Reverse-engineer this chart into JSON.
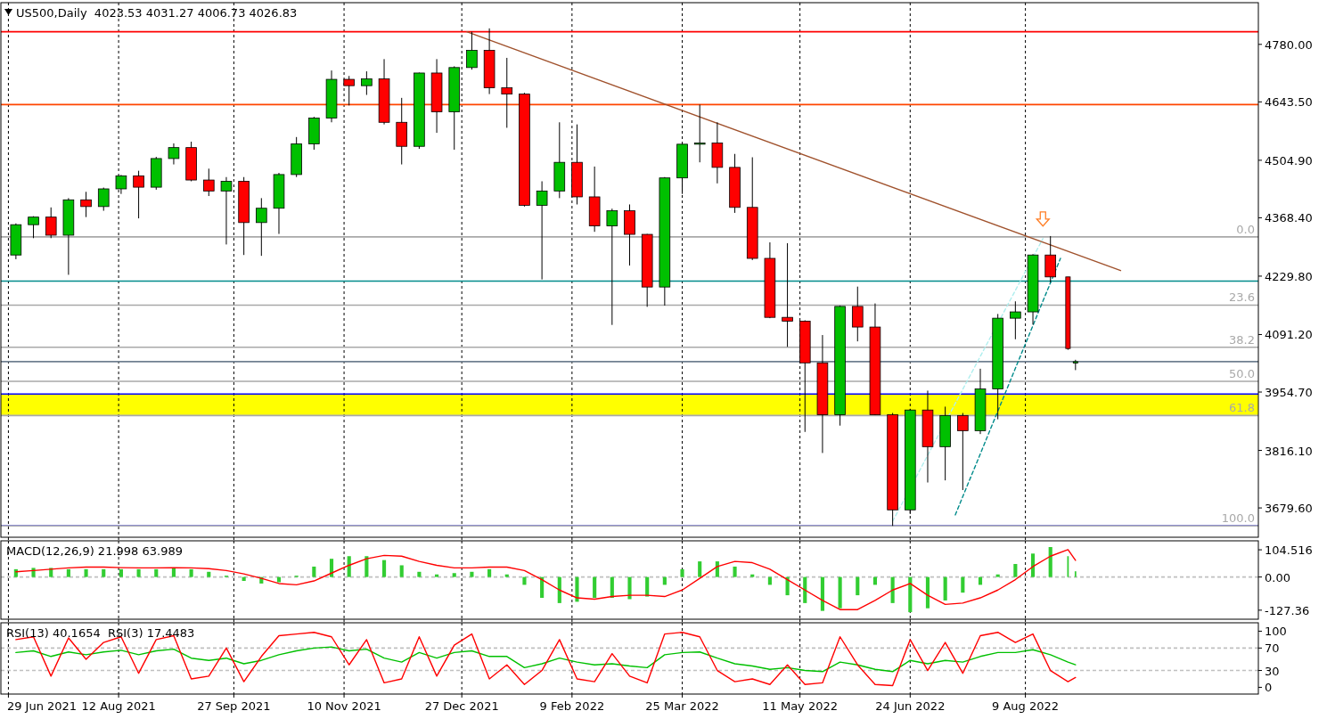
{
  "chart_data": [
    {
      "type": "candlestick",
      "title": "US500,Daily  4023.53 4031.27 4006.73 4026.83",
      "tick_labels": "y",
      "grid": "x",
      "x": [
        "2021-07-02",
        "2021-07-09",
        "2021-07-16",
        "2021-07-23",
        "2021-07-30",
        "2021-08-06",
        "2021-08-13",
        "2021-08-20",
        "2021-08-27",
        "2021-09-03",
        "2021-09-10",
        "2021-09-17",
        "2021-09-24",
        "2021-10-01",
        "2021-10-08",
        "2021-10-15",
        "2021-10-22",
        "2021-10-29",
        "2021-11-05",
        "2021-11-12",
        "2021-11-19",
        "2021-11-26",
        "2021-12-03",
        "2021-12-10",
        "2021-12-17",
        "2021-12-24",
        "2021-12-31",
        "2022-01-07",
        "2022-01-14",
        "2022-01-21",
        "2022-01-28",
        "2022-02-04",
        "2022-02-11",
        "2022-02-18",
        "2022-02-25",
        "2022-03-04",
        "2022-03-11",
        "2022-03-18",
        "2022-03-25",
        "2022-04-01",
        "2022-04-08",
        "2022-04-15",
        "2022-04-22",
        "2022-04-29",
        "2022-05-06",
        "2022-05-13",
        "2022-05-20",
        "2022-05-27",
        "2022-06-03",
        "2022-06-10",
        "2022-06-17",
        "2022-06-24",
        "2022-07-01",
        "2022-07-08",
        "2022-07-15",
        "2022-07-22",
        "2022-07-29",
        "2022-08-05",
        "2022-08-12",
        "2022-08-19",
        "2022-08-26",
        "2022-08-29"
      ],
      "ohlc": [
        [
          4280,
          4355,
          4270,
          4352
        ],
        [
          4352,
          4372,
          4320,
          4370
        ],
        [
          4370,
          4393,
          4320,
          4327
        ],
        [
          4327,
          4415,
          4233,
          4411
        ],
        [
          4411,
          4430,
          4370,
          4395
        ],
        [
          4395,
          4440,
          4385,
          4437
        ],
        [
          4437,
          4470,
          4425,
          4468
        ],
        [
          4468,
          4480,
          4367,
          4441
        ],
        [
          4441,
          4513,
          4435,
          4509
        ],
        [
          4509,
          4545,
          4495,
          4535
        ],
        [
          4535,
          4549,
          4455,
          4458
        ],
        [
          4458,
          4485,
          4420,
          4432
        ],
        [
          4432,
          4465,
          4305,
          4455
        ],
        [
          4455,
          4465,
          4280,
          4357
        ],
        [
          4357,
          4415,
          4278,
          4391
        ],
        [
          4391,
          4475,
          4330,
          4471
        ],
        [
          4471,
          4560,
          4465,
          4544
        ],
        [
          4544,
          4608,
          4530,
          4605
        ],
        [
          4605,
          4718,
          4595,
          4697
        ],
        [
          4697,
          4705,
          4635,
          4682
        ],
        [
          4682,
          4716,
          4660,
          4698
        ],
        [
          4698,
          4745,
          4590,
          4595
        ],
        [
          4595,
          4653,
          4495,
          4538
        ],
        [
          4538,
          4713,
          4532,
          4712
        ],
        [
          4712,
          4745,
          4570,
          4620
        ],
        [
          4620,
          4728,
          4530,
          4725
        ],
        [
          4725,
          4810,
          4720,
          4766
        ],
        [
          4766,
          4818,
          4662,
          4677
        ],
        [
          4677,
          4748,
          4582,
          4662
        ],
        [
          4662,
          4665,
          4395,
          4398
        ],
        [
          4398,
          4455,
          4222,
          4432
        ],
        [
          4432,
          4595,
          4415,
          4500
        ],
        [
          4500,
          4590,
          4400,
          4418
        ],
        [
          4418,
          4490,
          4335,
          4349
        ],
        [
          4349,
          4390,
          4114,
          4385
        ],
        [
          4385,
          4400,
          4255,
          4329
        ],
        [
          4329,
          4330,
          4157,
          4204
        ],
        [
          4204,
          4465,
          4160,
          4463
        ],
        [
          4463,
          4546,
          4425,
          4543
        ],
        [
          4543,
          4637,
          4500,
          4546
        ],
        [
          4546,
          4595,
          4450,
          4488
        ],
        [
          4488,
          4520,
          4380,
          4393
        ],
        [
          4393,
          4512,
          4268,
          4272
        ],
        [
          4272,
          4310,
          4130,
          4132
        ],
        [
          4132,
          4308,
          4062,
          4123
        ],
        [
          4123,
          4125,
          3860,
          4024
        ],
        [
          4024,
          4090,
          3810,
          3901
        ],
        [
          3901,
          4160,
          3875,
          4158
        ],
        [
          4158,
          4205,
          4075,
          4109
        ],
        [
          4109,
          4165,
          3900,
          3901
        ],
        [
          3901,
          3905,
          3637,
          3675
        ],
        [
          3675,
          3915,
          3665,
          3912
        ],
        [
          3912,
          3958,
          3740,
          3825
        ],
        [
          3825,
          3920,
          3745,
          3899
        ],
        [
          3899,
          3905,
          3722,
          3863
        ],
        [
          3863,
          4010,
          3855,
          3962
        ],
        [
          3962,
          4140,
          3890,
          4130
        ],
        [
          4130,
          4170,
          4080,
          4145
        ],
        [
          4145,
          4282,
          4115,
          4280
        ],
        [
          4280,
          4325,
          4215,
          4228
        ],
        [
          4228,
          4228,
          4055,
          4058
        ],
        [
          4023.53,
          4031.27,
          4006.73,
          4026.83
        ]
      ],
      "series": [
        {
          "type": "line",
          "x": [
            "2021-12-29",
            "2022-09-16"
          ],
          "values": [
            4810,
            4243
          ],
          "color": "#a0522d",
          "line_style": "solid"
        },
        {
          "type": "line",
          "x": [
            "2022-06-17",
            "2022-08-16"
          ],
          "values": [
            3648,
            4319
          ],
          "color": "#afeeee",
          "line_style": "dashed"
        },
        {
          "type": "line",
          "x": [
            "2022-07-12",
            "2022-08-23"
          ],
          "values": [
            3663,
            4272
          ],
          "color": "#008b8b",
          "line_style": "dashed"
        }
      ],
      "xlim": [
        "2021-06-26",
        "2022-11-10"
      ],
      "xticks": [
        {
          "value": "2021-06-29",
          "label": null
        },
        {
          "value": "2021-08-12",
          "label": null
        },
        {
          "value": "2021-09-27",
          "label": null
        },
        {
          "value": "2021-11-10",
          "label": null
        },
        {
          "value": "2021-12-27",
          "label": null
        },
        {
          "value": "2022-02-09",
          "label": null
        },
        {
          "value": "2022-03-25",
          "label": null
        },
        {
          "value": "2022-05-11",
          "label": null
        },
        {
          "value": "2022-06-24",
          "label": null
        },
        {
          "value": "2022-08-09",
          "label": null
        }
      ],
      "ylim": [
        3610,
        4879
      ],
      "yticks": [
        {
          "value": 3679.6,
          "label": "3679.60"
        },
        {
          "value": 3816.1,
          "label": "3816.10"
        },
        {
          "value": 3954.7,
          "label": "3954.70"
        },
        {
          "value": 4091.2,
          "label": "4091.20"
        },
        {
          "value": 4229.8,
          "label": "4229.80"
        },
        {
          "value": 4368.4,
          "label": "4368.40"
        },
        {
          "value": 4504.9,
          "label": "4504.90"
        },
        {
          "value": 4643.5,
          "label": "4643.50"
        },
        {
          "value": 4780,
          "label": "4780.00"
        }
      ],
      "bands": [
        {
          "axis": "y",
          "from": 3900,
          "to": 3950,
          "color": "#ffff00"
        }
      ],
      "ref_lines": [
        {
          "axis": "y",
          "value": 4810,
          "color": "#ff0000"
        },
        {
          "axis": "y",
          "value": 4637,
          "color": "#ff4500"
        },
        {
          "axis": "y",
          "value": 4218,
          "color": "#008b8b"
        },
        {
          "axis": "y",
          "value": 3950,
          "color": "#0000ff"
        },
        {
          "axis": "y",
          "value": 3637,
          "color": "#0000ff"
        },
        {
          "axis": "y",
          "value": 4026.83,
          "color": "#708090"
        },
        {
          "axis": "y",
          "value": 4323,
          "color": "#a9a9a9"
        },
        {
          "axis": "y",
          "value": 4161,
          "color": "#a9a9a9"
        },
        {
          "axis": "y",
          "value": 4061,
          "color": "#a9a9a9"
        },
        {
          "axis": "y",
          "value": 3980,
          "color": "#a9a9a9"
        },
        {
          "axis": "y",
          "value": 3899,
          "color": "#a9a9a9"
        },
        {
          "axis": "y",
          "value": 3637,
          "color": "#a9a9a9"
        }
      ],
      "annotations": [
        {
          "text": "0.0",
          "y": 4323
        },
        {
          "text": "23.6",
          "y": 4161
        },
        {
          "text": "38.2",
          "y": 4061
        },
        {
          "text": "50.0",
          "y": 3980
        },
        {
          "text": "61.8",
          "y": 3899
        },
        {
          "text": "100.0",
          "y": 3637
        }
      ]
    },
    {
      "type": "bar",
      "title": "MACD(12,26,9) 21.998 63.989",
      "tick_labels": "y",
      "grid": "x",
      "x": [
        "2021-07-02",
        "2021-07-09",
        "2021-07-16",
        "2021-07-23",
        "2021-07-30",
        "2021-08-06",
        "2021-08-13",
        "2021-08-20",
        "2021-08-27",
        "2021-09-03",
        "2021-09-10",
        "2021-09-17",
        "2021-09-24",
        "2021-10-01",
        "2021-10-08",
        "2021-10-15",
        "2021-10-22",
        "2021-10-29",
        "2021-11-05",
        "2021-11-12",
        "2021-11-19",
        "2021-11-26",
        "2021-12-03",
        "2021-12-10",
        "2021-12-17",
        "2021-12-24",
        "2021-12-31",
        "2022-01-07",
        "2022-01-14",
        "2022-01-21",
        "2022-01-28",
        "2022-02-04",
        "2022-02-11",
        "2022-02-18",
        "2022-02-25",
        "2022-03-04",
        "2022-03-11",
        "2022-03-18",
        "2022-03-25",
        "2022-04-01",
        "2022-04-08",
        "2022-04-15",
        "2022-04-22",
        "2022-04-29",
        "2022-05-06",
        "2022-05-13",
        "2022-05-20",
        "2022-05-27",
        "2022-06-03",
        "2022-06-10",
        "2022-06-17",
        "2022-06-24",
        "2022-07-01",
        "2022-07-08",
        "2022-07-15",
        "2022-07-22",
        "2022-07-29",
        "2022-08-05",
        "2022-08-12",
        "2022-08-19",
        "2022-08-26",
        "2022-08-29"
      ],
      "series": [
        {
          "type": "bar",
          "color": "#32cd32",
          "values": [
            30,
            35,
            35,
            30,
            30,
            30,
            30,
            30,
            30,
            35,
            30,
            20,
            5,
            -15,
            -25,
            -20,
            5,
            40,
            70,
            80,
            80,
            65,
            45,
            20,
            10,
            15,
            20,
            30,
            10,
            -30,
            -80,
            -100,
            -95,
            -80,
            -80,
            -85,
            -75,
            -30,
            30,
            60,
            60,
            40,
            10,
            -30,
            -70,
            -100,
            -130,
            -120,
            -70,
            -30,
            -100,
            -135,
            -120,
            -90,
            -60,
            -30,
            10,
            50,
            90,
            115,
            80,
            21.998
          ]
        },
        {
          "type": "line",
          "color": "#ff0000",
          "values": [
            20,
            25,
            30,
            35,
            38,
            38,
            36,
            35,
            35,
            36,
            35,
            32,
            25,
            12,
            -5,
            -25,
            -30,
            -15,
            15,
            45,
            70,
            83,
            80,
            60,
            45,
            35,
            35,
            38,
            38,
            25,
            -10,
            -50,
            -80,
            -85,
            -75,
            -70,
            -70,
            -75,
            -50,
            -5,
            40,
            60,
            55,
            30,
            -10,
            -50,
            -90,
            -125,
            -125,
            -90,
            -50,
            -25,
            -70,
            -105,
            -100,
            -80,
            -50,
            -10,
            40,
            80,
            105,
            63.989
          ]
        }
      ],
      "xlim": [
        "2021-06-26",
        "2022-11-10"
      ],
      "xticks": [
        {
          "value": "2021-06-29",
          "label": null
        },
        {
          "value": "2021-08-12",
          "label": null
        },
        {
          "value": "2021-09-27",
          "label": null
        },
        {
          "value": "2021-11-10",
          "label": null
        },
        {
          "value": "2021-12-27",
          "label": null
        },
        {
          "value": "2022-02-09",
          "label": null
        },
        {
          "value": "2022-03-25",
          "label": null
        },
        {
          "value": "2022-05-11",
          "label": null
        },
        {
          "value": "2022-06-24",
          "label": null
        },
        {
          "value": "2022-08-09",
          "label": null
        }
      ],
      "ylim": [
        -162,
        139
      ],
      "yticks": [
        {
          "value": 104.516,
          "label": "104.516"
        },
        {
          "value": 0,
          "label": "0.00"
        },
        {
          "value": -127.36,
          "label": "-127.36"
        }
      ],
      "ref_lines": [
        {
          "axis": "y",
          "value": 0,
          "color": "#c0c0c0",
          "line_style": "dashed"
        }
      ]
    },
    {
      "type": "line",
      "title": "RSI(13) 40.1654  RSI(3) 17.4483",
      "grid": "x",
      "x": [
        "2021-07-02",
        "2021-07-09",
        "2021-07-16",
        "2021-07-23",
        "2021-07-30",
        "2021-08-06",
        "2021-08-13",
        "2021-08-20",
        "2021-08-27",
        "2021-09-03",
        "2021-09-10",
        "2021-09-17",
        "2021-09-24",
        "2021-10-01",
        "2021-10-08",
        "2021-10-15",
        "2021-10-22",
        "2021-10-29",
        "2021-11-05",
        "2021-11-12",
        "2021-11-19",
        "2021-11-26",
        "2021-12-03",
        "2021-12-10",
        "2021-12-17",
        "2021-12-24",
        "2021-12-31",
        "2022-01-07",
        "2022-01-14",
        "2022-01-21",
        "2022-01-28",
        "2022-02-04",
        "2022-02-11",
        "2022-02-18",
        "2022-02-25",
        "2022-03-04",
        "2022-03-11",
        "2022-03-18",
        "2022-03-25",
        "2022-04-01",
        "2022-04-08",
        "2022-04-15",
        "2022-04-22",
        "2022-04-29",
        "2022-05-06",
        "2022-05-13",
        "2022-05-20",
        "2022-05-27",
        "2022-06-03",
        "2022-06-10",
        "2022-06-17",
        "2022-06-24",
        "2022-07-01",
        "2022-07-08",
        "2022-07-15",
        "2022-07-22",
        "2022-07-29",
        "2022-08-05",
        "2022-08-12",
        "2022-08-19",
        "2022-08-26",
        "2022-08-29"
      ],
      "series": [
        {
          "color": "#00c000",
          "values": [
            62,
            65,
            55,
            63,
            58,
            63,
            66,
            58,
            65,
            68,
            52,
            48,
            52,
            42,
            48,
            58,
            65,
            70,
            72,
            65,
            68,
            52,
            45,
            62,
            52,
            62,
            65,
            55,
            55,
            35,
            42,
            52,
            45,
            40,
            42,
            38,
            35,
            58,
            62,
            63,
            52,
            42,
            38,
            32,
            35,
            30,
            28,
            45,
            40,
            32,
            28,
            48,
            42,
            48,
            45,
            55,
            62,
            62,
            67,
            58,
            45,
            40.1654
          ]
        },
        {
          "color": "#ff0000",
          "values": [
            85,
            90,
            20,
            88,
            50,
            80,
            90,
            25,
            85,
            92,
            15,
            20,
            70,
            10,
            55,
            92,
            95,
            98,
            90,
            40,
            85,
            8,
            15,
            90,
            20,
            75,
            95,
            15,
            40,
            5,
            30,
            85,
            15,
            10,
            60,
            20,
            8,
            95,
            98,
            90,
            30,
            10,
            15,
            5,
            40,
            5,
            8,
            90,
            40,
            5,
            3,
            85,
            30,
            80,
            25,
            92,
            98,
            80,
            95,
            30,
            10,
            17.4483
          ]
        }
      ],
      "xlim": [
        "2021-06-26",
        "2022-11-10"
      ],
      "xticks": [
        {
          "value": "2021-06-29",
          "label": "29 Jun 2021"
        },
        {
          "value": "2021-08-12",
          "label": "12 Aug 2021"
        },
        {
          "value": "2021-09-27",
          "label": "27 Sep 2021"
        },
        {
          "value": "2021-11-10",
          "label": "10 Nov 2021"
        },
        {
          "value": "2021-12-27",
          "label": "27 Dec 2021"
        },
        {
          "value": "2022-02-09",
          "label": "9 Feb 2022"
        },
        {
          "value": "2022-03-25",
          "label": "25 Mar 2022"
        },
        {
          "value": "2022-05-11",
          "label": "11 May 2022"
        },
        {
          "value": "2022-06-24",
          "label": "24 Jun 2022"
        },
        {
          "value": "2022-08-09",
          "label": "9 Aug 2022"
        }
      ],
      "ylim": [
        -12,
        115
      ],
      "yticks": [
        0,
        30,
        70,
        100
      ],
      "ref_lines": [
        {
          "axis": "y",
          "value": 70,
          "color": "#c0c0c0",
          "line_style": "dashed"
        },
        {
          "axis": "y",
          "value": 30,
          "color": "#c0c0c0",
          "line_style": "dashed"
        }
      ]
    }
  ]
}
